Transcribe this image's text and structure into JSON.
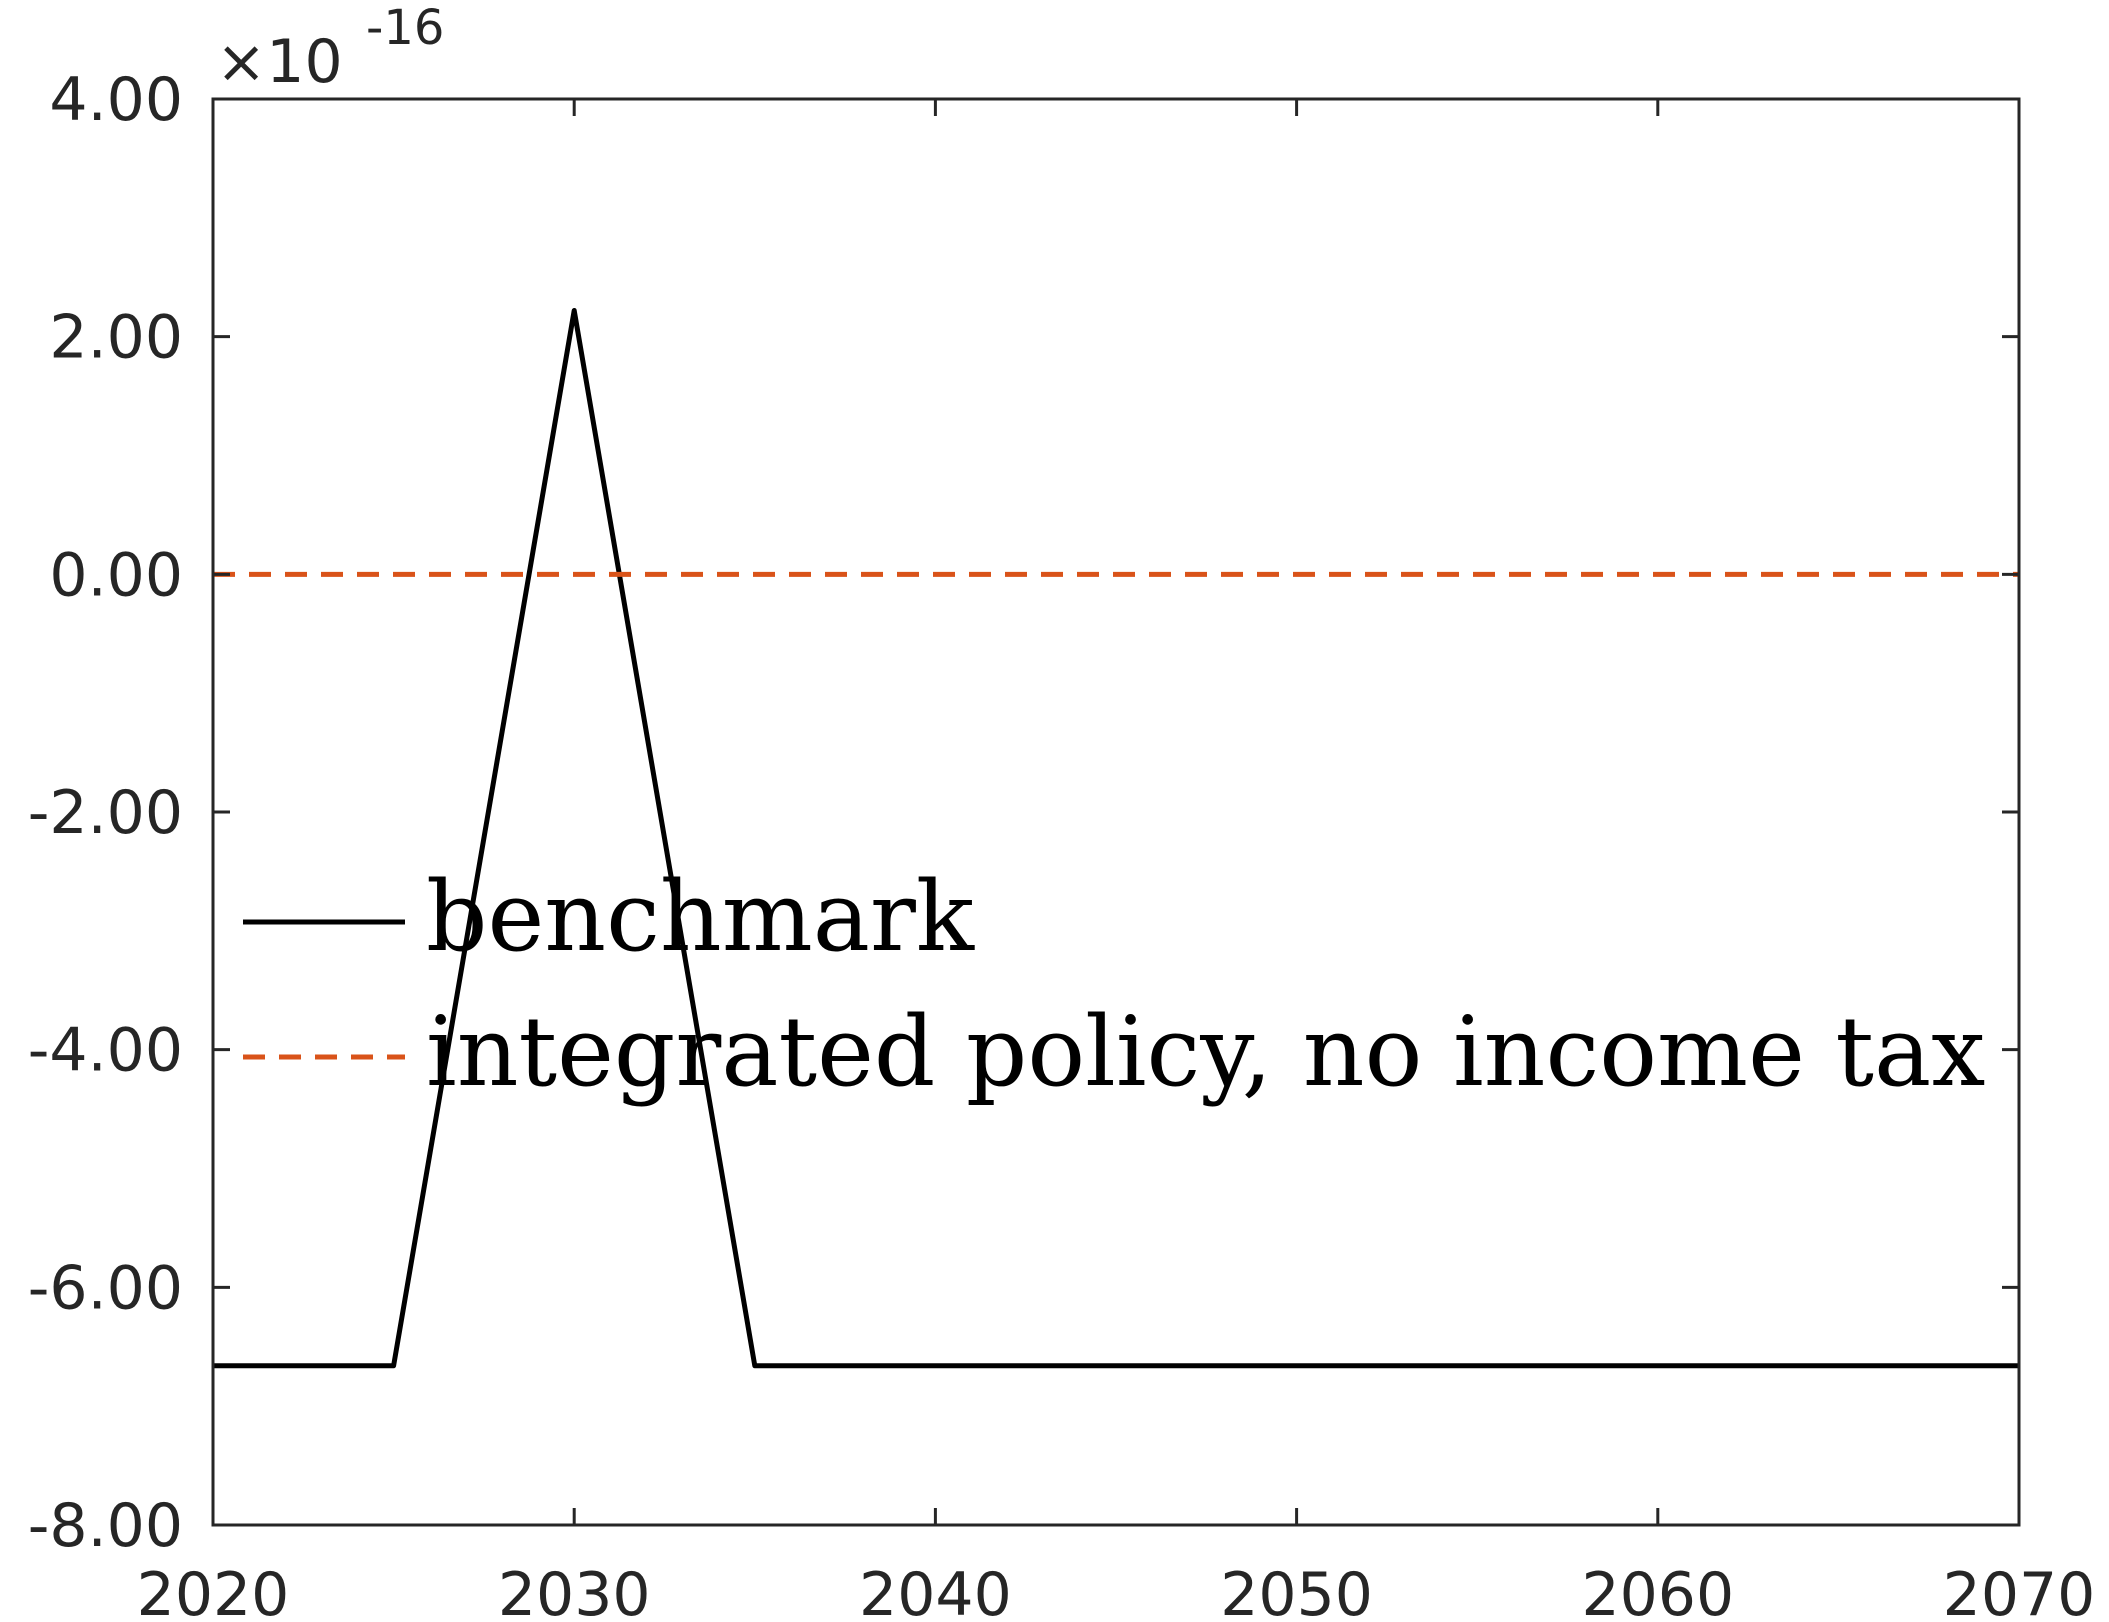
{
  "chart_data": {
    "type": "line",
    "title": "",
    "xlabel": "",
    "ylabel": "",
    "xlim": [
      2020,
      2070
    ],
    "ylim": [
      -8,
      4
    ],
    "x_ticks": [
      2020,
      2030,
      2040,
      2050,
      2060,
      2070
    ],
    "x_tick_labels": [
      "2020",
      "2030",
      "2040",
      "2050",
      "2060",
      "2070"
    ],
    "y_ticks": [
      -8,
      -6,
      -4,
      -2,
      0,
      2,
      4
    ],
    "y_tick_labels": [
      "-8.00",
      "-6.00",
      "-4.00",
      "-2.00",
      "0.00",
      "2.00",
      "4.00"
    ],
    "y_exponent": {
      "base": "×10",
      "power": "-16"
    },
    "grid": false,
    "legend_position": "left-middle",
    "series": [
      {
        "name": "benchmark",
        "color": "#000000",
        "style": "solid",
        "x": [
          2020,
          2025,
          2030,
          2035,
          2070
        ],
        "y": [
          -6.66,
          -6.66,
          2.22,
          -6.66,
          -6.66
        ]
      },
      {
        "name": "integrated policy, no income tax",
        "color": "#D95319",
        "style": "dashed",
        "x": [
          2020,
          2070
        ],
        "y": [
          0,
          0
        ]
      }
    ]
  }
}
